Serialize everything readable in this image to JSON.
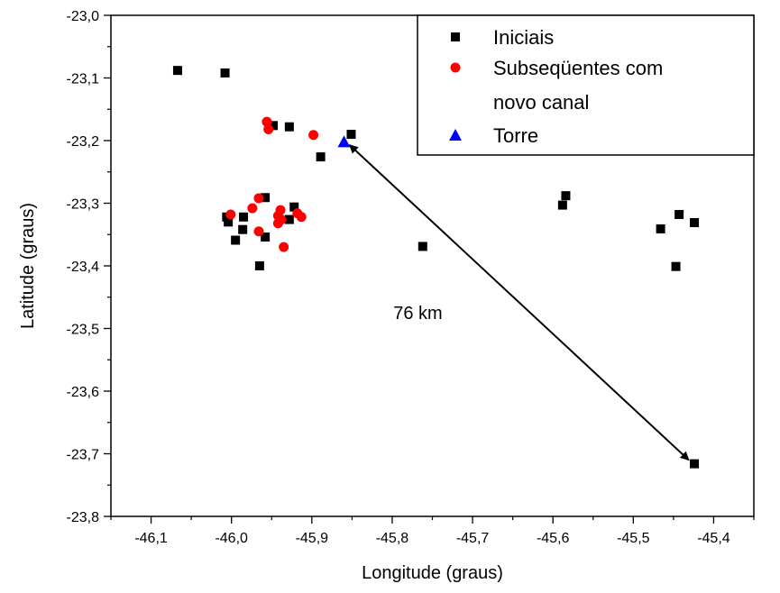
{
  "chart_data": {
    "type": "scatter",
    "xlabel": "Longitude (graus)",
    "ylabel": "Latitude (graus)",
    "xlim": [
      -46.15,
      -45.35
    ],
    "ylim": [
      -23.8,
      -23.0
    ],
    "xticks": [
      {
        "v": -46.1,
        "label": "-46,1"
      },
      {
        "v": -46.0,
        "label": "-46,0"
      },
      {
        "v": -45.9,
        "label": "-45,9"
      },
      {
        "v": -45.8,
        "label": "-45,8"
      },
      {
        "v": -45.7,
        "label": "-45,7"
      },
      {
        "v": -45.6,
        "label": "-45,6"
      },
      {
        "v": -45.5,
        "label": "-45,5"
      },
      {
        "v": -45.4,
        "label": "-45,4"
      }
    ],
    "yticks": [
      {
        "v": -23.0,
        "label": "-23,0"
      },
      {
        "v": -23.1,
        "label": "-23,1"
      },
      {
        "v": -23.2,
        "label": "-23,2"
      },
      {
        "v": -23.3,
        "label": "-23,3"
      },
      {
        "v": -23.4,
        "label": "-23,4"
      },
      {
        "v": -23.5,
        "label": "-23,5"
      },
      {
        "v": -23.6,
        "label": "-23,6"
      },
      {
        "v": -23.7,
        "label": "-23,7"
      },
      {
        "v": -23.8,
        "label": "-23,8"
      }
    ],
    "grid": false,
    "legend_position": "top-right",
    "series": [
      {
        "name": "Iniciais",
        "marker": "square",
        "color": "#000000",
        "points": [
          [
            -46.067,
            -23.088
          ],
          [
            -46.008,
            -23.092
          ],
          [
            -45.948,
            -23.176
          ],
          [
            -45.928,
            -23.178
          ],
          [
            -45.851,
            -23.19
          ],
          [
            -45.889,
            -23.226
          ],
          [
            -46.006,
            -23.322
          ],
          [
            -46.004,
            -23.33
          ],
          [
            -45.985,
            -23.322
          ],
          [
            -45.986,
            -23.342
          ],
          [
            -45.995,
            -23.359
          ],
          [
            -45.958,
            -23.291
          ],
          [
            -45.958,
            -23.354
          ],
          [
            -45.922,
            -23.306
          ],
          [
            -45.928,
            -23.326
          ],
          [
            -45.965,
            -23.4
          ],
          [
            -45.762,
            -23.369
          ],
          [
            -45.588,
            -23.303
          ],
          [
            -45.584,
            -23.288
          ],
          [
            -45.466,
            -23.341
          ],
          [
            -45.443,
            -23.318
          ],
          [
            -45.424,
            -23.331
          ],
          [
            -45.447,
            -23.401
          ],
          [
            -45.424,
            -23.716
          ]
        ]
      },
      {
        "name": "Subseqüentes com novo canal",
        "name_line2": "novo canal",
        "marker": "circle",
        "color": "#ff0000",
        "points": [
          [
            -45.956,
            -23.17
          ],
          [
            -45.954,
            -23.182
          ],
          [
            -45.898,
            -23.191
          ],
          [
            -45.966,
            -23.292
          ],
          [
            -45.974,
            -23.308
          ],
          [
            -46.001,
            -23.318
          ],
          [
            -45.966,
            -23.345
          ],
          [
            -45.939,
            -23.311
          ],
          [
            -45.942,
            -23.32
          ],
          [
            -45.938,
            -23.326
          ],
          [
            -45.942,
            -23.332
          ],
          [
            -45.918,
            -23.316
          ],
          [
            -45.913,
            -23.322
          ],
          [
            -45.935,
            -23.37
          ]
        ]
      },
      {
        "name": "Torre",
        "marker": "triangle",
        "color": "#0000ff",
        "points": [
          [
            -45.86,
            -23.202
          ]
        ]
      }
    ],
    "annotations": [
      {
        "type": "double-arrow",
        "from": [
          -45.853,
          -23.207
        ],
        "to": [
          -45.431,
          -23.71
        ],
        "text": "76 km",
        "text_at": [
          -45.768,
          -23.475
        ]
      }
    ]
  }
}
